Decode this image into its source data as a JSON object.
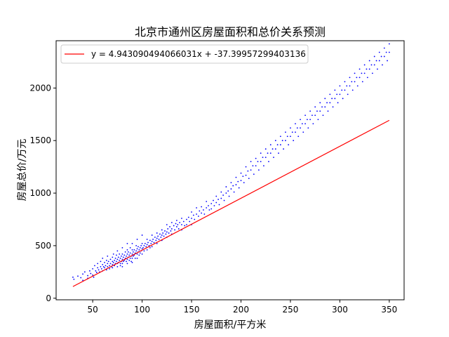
{
  "chart_data": {
    "type": "scatter",
    "title": "北京市通州区房屋面积和总价关系预测",
    "xlabel": "房屋面积/平方米",
    "ylabel": "房屋总价/万元",
    "xlim": [
      13,
      365
    ],
    "ylim": [
      -15,
      2450
    ],
    "grid": false,
    "legend_position": "top-left",
    "x_ticks": [
      50,
      100,
      150,
      200,
      250,
      300,
      350
    ],
    "y_ticks": [
      0,
      500,
      1000,
      1500,
      2000
    ],
    "x_tick_labels": [
      "50",
      "100",
      "150",
      "200",
      "250",
      "300",
      "350"
    ],
    "y_tick_labels": [
      "0",
      "500",
      "1000",
      "1500",
      "2000"
    ],
    "scatter_color": "#0000ff",
    "line_color": "#ff0000",
    "regression": {
      "label": "y = 4.943090494066031x + -37.39957299403136",
      "slope": 4.943090494066031,
      "intercept": -37.39957299403136,
      "x_range": [
        30,
        350
      ]
    },
    "points": [
      [
        30,
        200
      ],
      [
        31,
        180
      ],
      [
        35,
        210
      ],
      [
        38,
        195
      ],
      [
        40,
        230
      ],
      [
        40,
        170
      ],
      [
        42,
        250
      ],
      [
        45,
        215
      ],
      [
        45,
        190
      ],
      [
        47,
        260
      ],
      [
        48,
        235
      ],
      [
        50,
        280
      ],
      [
        50,
        220
      ],
      [
        51,
        200
      ],
      [
        52,
        310
      ],
      [
        53,
        260
      ],
      [
        54,
        245
      ],
      [
        55,
        290
      ],
      [
        55,
        330
      ],
      [
        56,
        270
      ],
      [
        57,
        250
      ],
      [
        58,
        300
      ],
      [
        58,
        350
      ],
      [
        59,
        280
      ],
      [
        60,
        320
      ],
      [
        60,
        260
      ],
      [
        60,
        380
      ],
      [
        61,
        300
      ],
      [
        62,
        340
      ],
      [
        62,
        290
      ],
      [
        63,
        310
      ],
      [
        64,
        360
      ],
      [
        64,
        270
      ],
      [
        65,
        330
      ],
      [
        65,
        400
      ],
      [
        65,
        300
      ],
      [
        66,
        350
      ],
      [
        67,
        310
      ],
      [
        67,
        280
      ],
      [
        68,
        370
      ],
      [
        68,
        330
      ],
      [
        69,
        300
      ],
      [
        70,
        390
      ],
      [
        70,
        350
      ],
      [
        70,
        320
      ],
      [
        70,
        290
      ],
      [
        71,
        420
      ],
      [
        71,
        340
      ],
      [
        72,
        360
      ],
      [
        72,
        310
      ],
      [
        73,
        380
      ],
      [
        73,
        330
      ],
      [
        74,
        350
      ],
      [
        74,
        410
      ],
      [
        75,
        370
      ],
      [
        75,
        330
      ],
      [
        75,
        300
      ],
      [
        75,
        450
      ],
      [
        76,
        390
      ],
      [
        76,
        340
      ],
      [
        77,
        360
      ],
      [
        77,
        420
      ],
      [
        78,
        380
      ],
      [
        78,
        330
      ],
      [
        78,
        310
      ],
      [
        79,
        400
      ],
      [
        79,
        350
      ],
      [
        80,
        370
      ],
      [
        80,
        420
      ],
      [
        80,
        330
      ],
      [
        80,
        480
      ],
      [
        80,
        300
      ],
      [
        81,
        390
      ],
      [
        81,
        350
      ],
      [
        82,
        410
      ],
      [
        82,
        360
      ],
      [
        83,
        380
      ],
      [
        83,
        440
      ],
      [
        84,
        400
      ],
      [
        84,
        350
      ],
      [
        85,
        420
      ],
      [
        85,
        370
      ],
      [
        85,
        460
      ],
      [
        85,
        330
      ],
      [
        85,
        520
      ],
      [
        86,
        390
      ],
      [
        86,
        440
      ],
      [
        87,
        410
      ],
      [
        87,
        360
      ],
      [
        88,
        430
      ],
      [
        88,
        380
      ],
      [
        88,
        480
      ],
      [
        89,
        400
      ],
      [
        89,
        350
      ],
      [
        90,
        420
      ],
      [
        90,
        460
      ],
      [
        90,
        380
      ],
      [
        90,
        520
      ],
      [
        90,
        340
      ],
      [
        91,
        440
      ],
      [
        91,
        400
      ],
      [
        92,
        460
      ],
      [
        92,
        410
      ],
      [
        93,
        430
      ],
      [
        93,
        380
      ],
      [
        94,
        450
      ],
      [
        94,
        500
      ],
      [
        95,
        470
      ],
      [
        95,
        420
      ],
      [
        95,
        380
      ],
      [
        95,
        560
      ],
      [
        96,
        440
      ],
      [
        96,
        490
      ],
      [
        97,
        460
      ],
      [
        97,
        410
      ],
      [
        98,
        480
      ],
      [
        98,
        430
      ],
      [
        99,
        500
      ],
      [
        99,
        450
      ],
      [
        100,
        470
      ],
      [
        100,
        520
      ],
      [
        100,
        420
      ],
      [
        100,
        600
      ],
      [
        101,
        480
      ],
      [
        102,
        500
      ],
      [
        102,
        450
      ],
      [
        103,
        520
      ],
      [
        104,
        490
      ],
      [
        105,
        510
      ],
      [
        105,
        560
      ],
      [
        105,
        460
      ],
      [
        106,
        530
      ],
      [
        107,
        500
      ],
      [
        108,
        550
      ],
      [
        108,
        480
      ],
      [
        109,
        520
      ],
      [
        110,
        540
      ],
      [
        110,
        600
      ],
      [
        110,
        490
      ],
      [
        111,
        560
      ],
      [
        112,
        530
      ],
      [
        113,
        580
      ],
      [
        114,
        550
      ],
      [
        115,
        570
      ],
      [
        115,
        620
      ],
      [
        115,
        520
      ],
      [
        116,
        590
      ],
      [
        117,
        560
      ],
      [
        118,
        610
      ],
      [
        119,
        580
      ],
      [
        120,
        600
      ],
      [
        120,
        650
      ],
      [
        120,
        550
      ],
      [
        121,
        620
      ],
      [
        122,
        590
      ],
      [
        123,
        640
      ],
      [
        124,
        610
      ],
      [
        125,
        630
      ],
      [
        125,
        700
      ],
      [
        125,
        580
      ],
      [
        126,
        660
      ],
      [
        127,
        620
      ],
      [
        128,
        680
      ],
      [
        129,
        640
      ],
      [
        130,
        660
      ],
      [
        130,
        720
      ],
      [
        130,
        610
      ],
      [
        132,
        690
      ],
      [
        133,
        650
      ],
      [
        134,
        710
      ],
      [
        135,
        680
      ],
      [
        135,
        740
      ],
      [
        136,
        700
      ],
      [
        137,
        660
      ],
      [
        138,
        720
      ],
      [
        140,
        700
      ],
      [
        140,
        760
      ],
      [
        140,
        650
      ],
      [
        142,
        730
      ],
      [
        143,
        690
      ],
      [
        145,
        750
      ],
      [
        145,
        700
      ],
      [
        147,
        770
      ],
      [
        148,
        730
      ],
      [
        150,
        760
      ],
      [
        150,
        820
      ],
      [
        150,
        700
      ],
      [
        152,
        790
      ],
      [
        153,
        750
      ],
      [
        155,
        800
      ],
      [
        155,
        860
      ],
      [
        157,
        780
      ],
      [
        158,
        830
      ],
      [
        160,
        810
      ],
      [
        160,
        870
      ],
      [
        162,
        840
      ],
      [
        163,
        800
      ],
      [
        165,
        860
      ],
      [
        165,
        920
      ],
      [
        167,
        880
      ],
      [
        168,
        840
      ],
      [
        170,
        900
      ],
      [
        170,
        850
      ],
      [
        172,
        930
      ],
      [
        173,
        880
      ],
      [
        175,
        910
      ],
      [
        175,
        970
      ],
      [
        177,
        940
      ],
      [
        178,
        890
      ],
      [
        180,
        950
      ],
      [
        180,
        1010
      ],
      [
        182,
        980
      ],
      [
        183,
        930
      ],
      [
        185,
        1000
      ],
      [
        185,
        1060
      ],
      [
        187,
        1020
      ],
      [
        188,
        970
      ],
      [
        190,
        1040
      ],
      [
        190,
        1100
      ],
      [
        192,
        1070
      ],
      [
        193,
        1010
      ],
      [
        195,
        1080
      ],
      [
        195,
        1150
      ],
      [
        197,
        1110
      ],
      [
        198,
        1050
      ],
      [
        200,
        1120
      ],
      [
        200,
        1190
      ],
      [
        202,
        1160
      ],
      [
        203,
        1100
      ],
      [
        205,
        1170
      ],
      [
        205,
        1250
      ],
      [
        207,
        1210
      ],
      [
        208,
        1140
      ],
      [
        210,
        1220
      ],
      [
        210,
        1300
      ],
      [
        212,
        1260
      ],
      [
        213,
        1180
      ],
      [
        215,
        1260
      ],
      [
        215,
        1330
      ],
      [
        217,
        1300
      ],
      [
        218,
        1220
      ],
      [
        220,
        1300
      ],
      [
        220,
        1380
      ],
      [
        222,
        1340
      ],
      [
        223,
        1260
      ],
      [
        225,
        1340
      ],
      [
        225,
        1420
      ],
      [
        227,
        1380
      ],
      [
        228,
        1300
      ],
      [
        230,
        1380
      ],
      [
        230,
        1460
      ],
      [
        232,
        1420
      ],
      [
        233,
        1340
      ],
      [
        235,
        1420
      ],
      [
        235,
        1500
      ],
      [
        237,
        1460
      ],
      [
        238,
        1380
      ],
      [
        240,
        1460
      ],
      [
        240,
        1540
      ],
      [
        242,
        1500
      ],
      [
        243,
        1420
      ],
      [
        245,
        1500
      ],
      [
        245,
        1580
      ],
      [
        247,
        1540
      ],
      [
        248,
        1460
      ],
      [
        250,
        1540
      ],
      [
        250,
        1620
      ],
      [
        252,
        1580
      ],
      [
        253,
        1500
      ],
      [
        255,
        1580
      ],
      [
        255,
        1660
      ],
      [
        257,
        1620
      ],
      [
        258,
        1540
      ],
      [
        260,
        1620
      ],
      [
        260,
        1700
      ],
      [
        262,
        1660
      ],
      [
        263,
        1580
      ],
      [
        265,
        1660
      ],
      [
        265,
        1740
      ],
      [
        267,
        1700
      ],
      [
        268,
        1620
      ],
      [
        270,
        1700
      ],
      [
        270,
        1780
      ],
      [
        272,
        1740
      ],
      [
        273,
        1660
      ],
      [
        275,
        1740
      ],
      [
        275,
        1820
      ],
      [
        277,
        1780
      ],
      [
        278,
        1700
      ],
      [
        280,
        1780
      ],
      [
        280,
        1860
      ],
      [
        282,
        1820
      ],
      [
        283,
        1740
      ],
      [
        285,
        1820
      ],
      [
        285,
        1900
      ],
      [
        287,
        1860
      ],
      [
        288,
        1780
      ],
      [
        290,
        1860
      ],
      [
        290,
        1940
      ],
      [
        292,
        1900
      ],
      [
        293,
        1820
      ],
      [
        295,
        1900
      ],
      [
        295,
        1980
      ],
      [
        297,
        1940
      ],
      [
        298,
        1860
      ],
      [
        300,
        1940
      ],
      [
        300,
        2020
      ],
      [
        302,
        1980
      ],
      [
        303,
        1900
      ],
      [
        305,
        1980
      ],
      [
        305,
        2060
      ],
      [
        307,
        2020
      ],
      [
        308,
        1940
      ],
      [
        310,
        2020
      ],
      [
        310,
        2100
      ],
      [
        312,
        2060
      ],
      [
        313,
        1980
      ],
      [
        315,
        2060
      ],
      [
        315,
        2140
      ],
      [
        317,
        2100
      ],
      [
        318,
        2020
      ],
      [
        320,
        2100
      ],
      [
        320,
        2180
      ],
      [
        322,
        2140
      ],
      [
        323,
        2060
      ],
      [
        325,
        2140
      ],
      [
        325,
        2220
      ],
      [
        327,
        2180
      ],
      [
        328,
        2100
      ],
      [
        330,
        2180
      ],
      [
        330,
        2260
      ],
      [
        332,
        2220
      ],
      [
        333,
        2140
      ],
      [
        335,
        2220
      ],
      [
        335,
        2300
      ],
      [
        337,
        2260
      ],
      [
        338,
        2180
      ],
      [
        340,
        2260
      ],
      [
        340,
        2340
      ],
      [
        342,
        2300
      ],
      [
        343,
        2220
      ],
      [
        345,
        2300
      ],
      [
        345,
        2380
      ],
      [
        347,
        2340
      ],
      [
        348,
        2260
      ],
      [
        350,
        2340
      ],
      [
        350,
        2420
      ]
    ]
  }
}
